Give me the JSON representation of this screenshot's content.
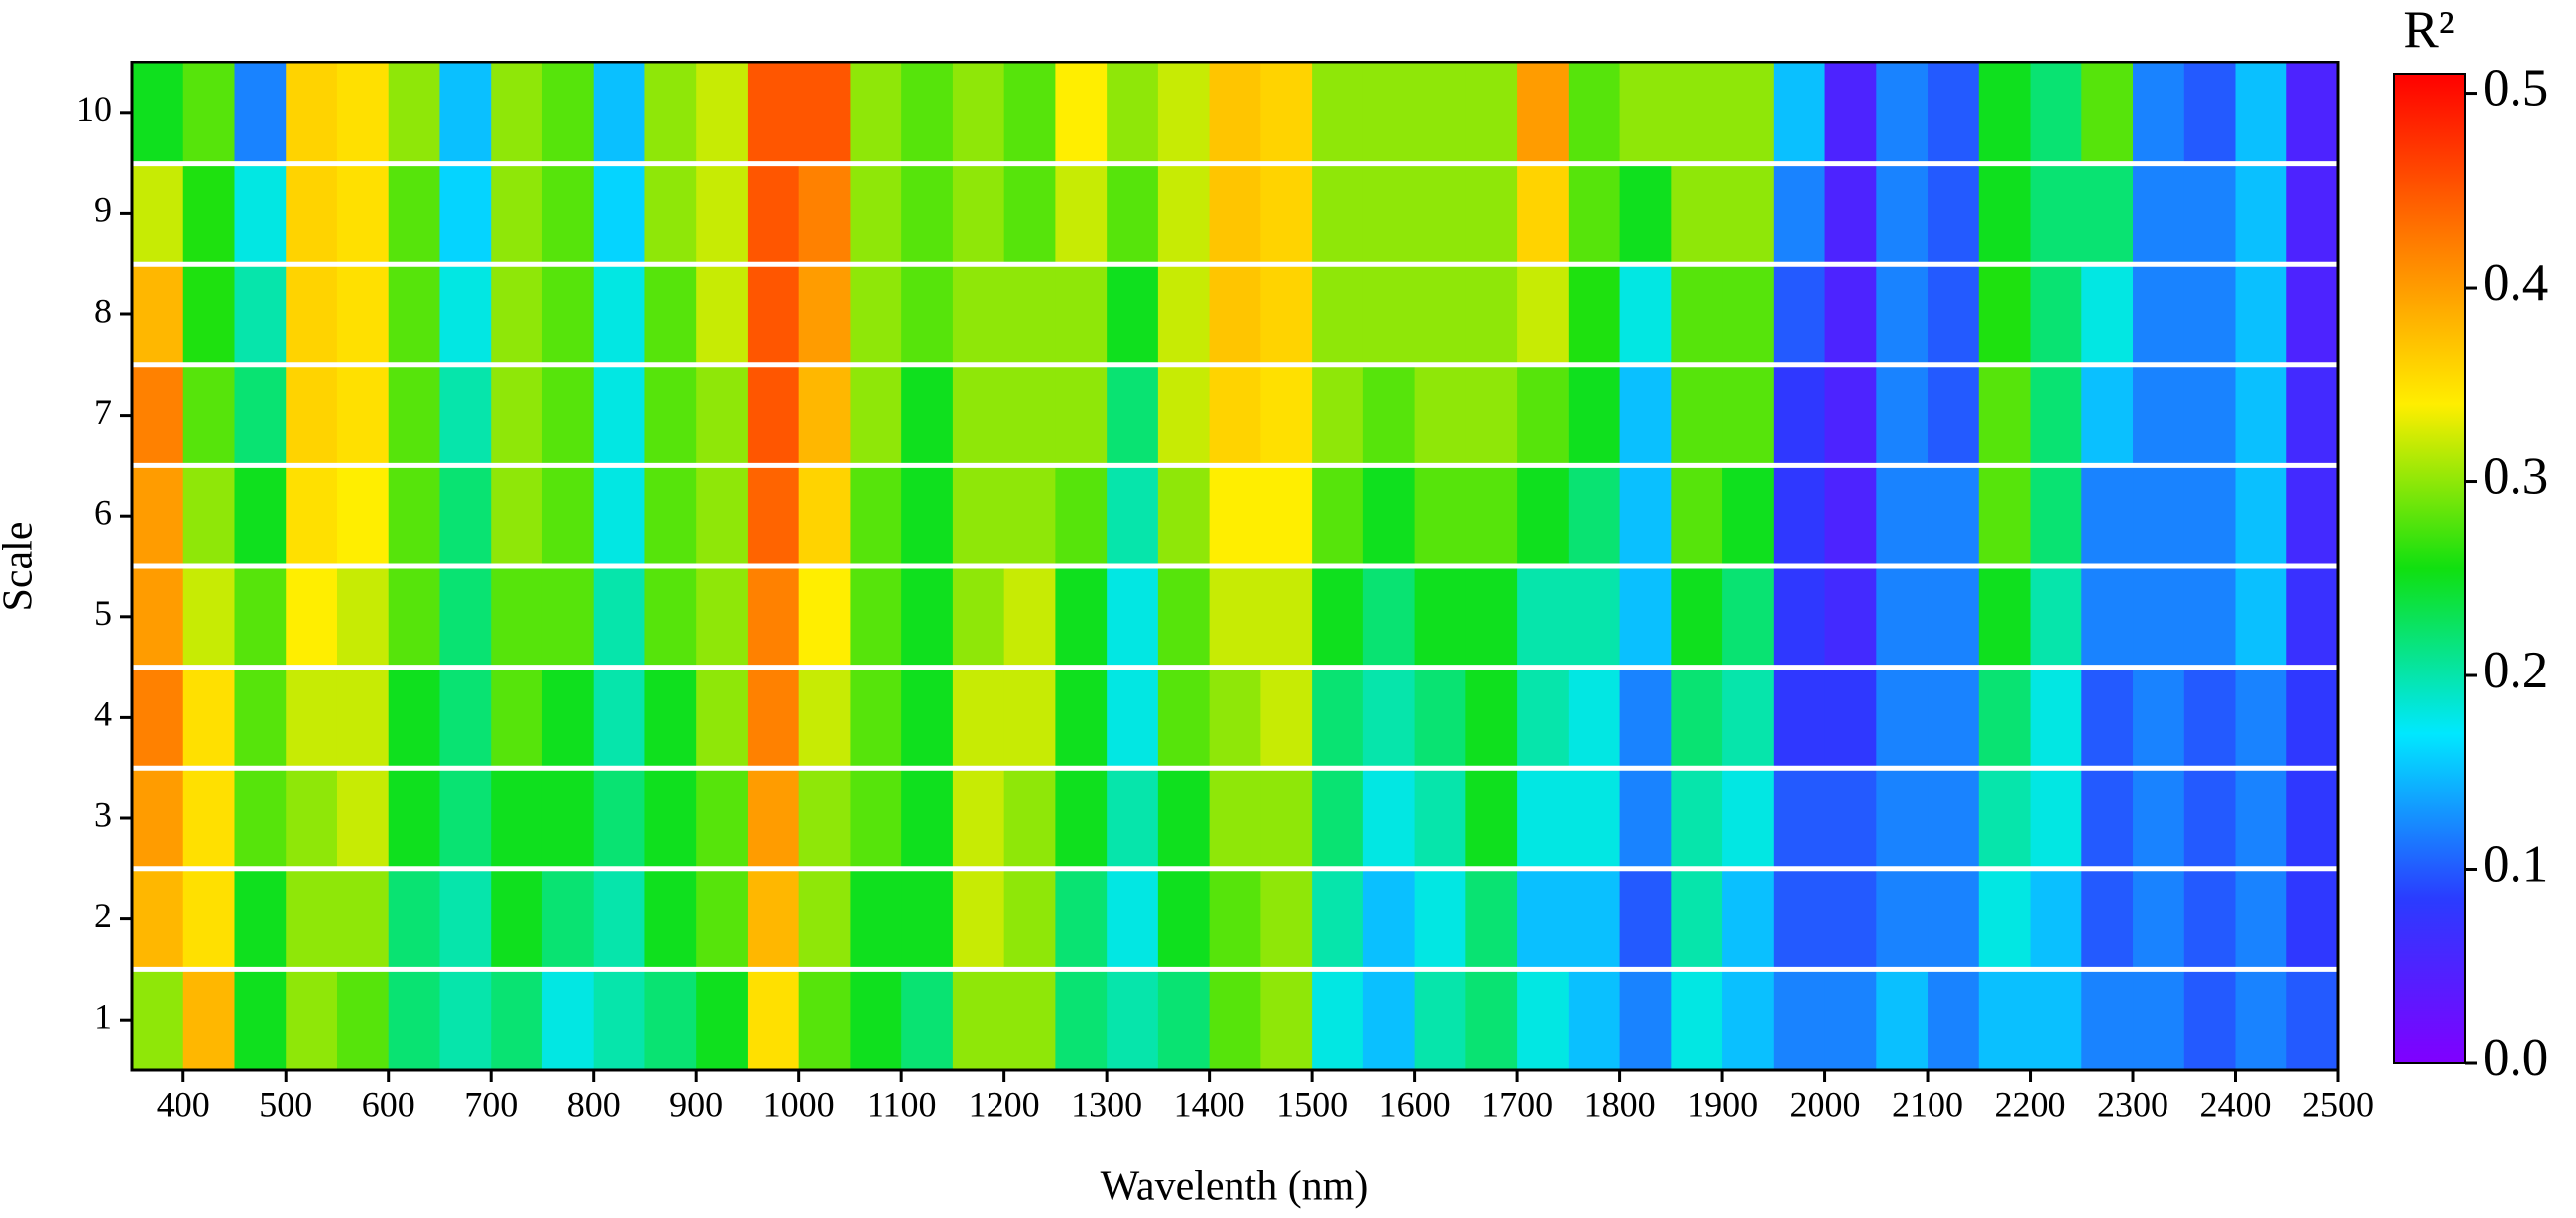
{
  "chart_data": {
    "type": "heatmap",
    "xlabel": "Wavelenth (nm)",
    "ylabel": "Scale",
    "colorbar_label": "R²",
    "x": [
      375,
      425,
      475,
      525,
      575,
      625,
      675,
      725,
      775,
      825,
      875,
      925,
      975,
      1025,
      1075,
      1125,
      1175,
      1225,
      1275,
      1325,
      1375,
      1425,
      1475,
      1525,
      1575,
      1625,
      1675,
      1725,
      1775,
      1825,
      1875,
      1925,
      1975,
      2025,
      2075,
      2125,
      2175,
      2225,
      2275,
      2325,
      2375,
      2425,
      2475
    ],
    "y": [
      1,
      2,
      3,
      4,
      5,
      6,
      7,
      8,
      9,
      10
    ],
    "z": [
      [
        0.3,
        0.38,
        0.25,
        0.3,
        0.28,
        0.22,
        0.2,
        0.22,
        0.18,
        0.2,
        0.22,
        0.25,
        0.35,
        0.28,
        0.25,
        0.22,
        0.3,
        0.3,
        0.22,
        0.2,
        0.22,
        0.28,
        0.3,
        0.18,
        0.15,
        0.2,
        0.22,
        0.18,
        0.15,
        0.12,
        0.18,
        0.15,
        0.12,
        0.12,
        0.15,
        0.12,
        0.15,
        0.15,
        0.12,
        0.12,
        0.1,
        0.12,
        0.1
      ],
      [
        0.38,
        0.35,
        0.25,
        0.3,
        0.3,
        0.22,
        0.2,
        0.25,
        0.22,
        0.2,
        0.25,
        0.28,
        0.38,
        0.3,
        0.25,
        0.25,
        0.32,
        0.3,
        0.22,
        0.18,
        0.25,
        0.28,
        0.3,
        0.2,
        0.15,
        0.18,
        0.22,
        0.15,
        0.15,
        0.1,
        0.2,
        0.15,
        0.1,
        0.1,
        0.12,
        0.12,
        0.18,
        0.15,
        0.1,
        0.12,
        0.1,
        0.12,
        0.08
      ],
      [
        0.4,
        0.35,
        0.28,
        0.3,
        0.32,
        0.25,
        0.22,
        0.25,
        0.25,
        0.22,
        0.25,
        0.28,
        0.4,
        0.3,
        0.28,
        0.25,
        0.32,
        0.3,
        0.25,
        0.2,
        0.25,
        0.3,
        0.3,
        0.22,
        0.18,
        0.2,
        0.25,
        0.18,
        0.18,
        0.12,
        0.2,
        0.18,
        0.1,
        0.1,
        0.12,
        0.12,
        0.2,
        0.18,
        0.1,
        0.12,
        0.1,
        0.12,
        0.08
      ],
      [
        0.42,
        0.35,
        0.28,
        0.32,
        0.32,
        0.25,
        0.22,
        0.28,
        0.25,
        0.2,
        0.25,
        0.3,
        0.42,
        0.32,
        0.28,
        0.25,
        0.32,
        0.32,
        0.25,
        0.18,
        0.28,
        0.3,
        0.32,
        0.22,
        0.2,
        0.22,
        0.25,
        0.2,
        0.18,
        0.12,
        0.22,
        0.2,
        0.08,
        0.08,
        0.12,
        0.12,
        0.22,
        0.18,
        0.1,
        0.12,
        0.1,
        0.12,
        0.08
      ],
      [
        0.4,
        0.32,
        0.28,
        0.34,
        0.32,
        0.28,
        0.22,
        0.28,
        0.28,
        0.2,
        0.28,
        0.3,
        0.42,
        0.34,
        0.28,
        0.25,
        0.3,
        0.32,
        0.25,
        0.18,
        0.28,
        0.32,
        0.32,
        0.25,
        0.22,
        0.25,
        0.25,
        0.2,
        0.2,
        0.15,
        0.25,
        0.22,
        0.08,
        0.06,
        0.12,
        0.12,
        0.25,
        0.2,
        0.12,
        0.12,
        0.12,
        0.15,
        0.07
      ],
      [
        0.4,
        0.3,
        0.25,
        0.35,
        0.34,
        0.28,
        0.22,
        0.3,
        0.28,
        0.18,
        0.28,
        0.3,
        0.44,
        0.36,
        0.28,
        0.25,
        0.3,
        0.3,
        0.28,
        0.2,
        0.3,
        0.34,
        0.34,
        0.28,
        0.25,
        0.28,
        0.28,
        0.25,
        0.22,
        0.15,
        0.28,
        0.25,
        0.08,
        0.05,
        0.12,
        0.12,
        0.28,
        0.22,
        0.12,
        0.12,
        0.12,
        0.15,
        0.06
      ],
      [
        0.42,
        0.28,
        0.22,
        0.36,
        0.35,
        0.28,
        0.2,
        0.3,
        0.28,
        0.18,
        0.28,
        0.3,
        0.45,
        0.38,
        0.3,
        0.25,
        0.3,
        0.3,
        0.3,
        0.22,
        0.32,
        0.36,
        0.35,
        0.3,
        0.28,
        0.3,
        0.3,
        0.28,
        0.25,
        0.15,
        0.28,
        0.28,
        0.08,
        0.05,
        0.12,
        0.1,
        0.28,
        0.22,
        0.15,
        0.12,
        0.12,
        0.15,
        0.06
      ],
      [
        0.38,
        0.26,
        0.2,
        0.36,
        0.35,
        0.28,
        0.18,
        0.3,
        0.28,
        0.18,
        0.28,
        0.32,
        0.45,
        0.4,
        0.3,
        0.28,
        0.3,
        0.3,
        0.3,
        0.25,
        0.32,
        0.37,
        0.36,
        0.3,
        0.3,
        0.3,
        0.3,
        0.32,
        0.26,
        0.18,
        0.28,
        0.28,
        0.1,
        0.05,
        0.12,
        0.1,
        0.26,
        0.22,
        0.18,
        0.12,
        0.12,
        0.15,
        0.05
      ],
      [
        0.32,
        0.26,
        0.18,
        0.36,
        0.35,
        0.28,
        0.16,
        0.3,
        0.28,
        0.16,
        0.3,
        0.32,
        0.45,
        0.42,
        0.3,
        0.28,
        0.3,
        0.28,
        0.32,
        0.28,
        0.32,
        0.37,
        0.36,
        0.3,
        0.3,
        0.3,
        0.3,
        0.36,
        0.28,
        0.25,
        0.3,
        0.3,
        0.12,
        0.05,
        0.12,
        0.1,
        0.25,
        0.22,
        0.22,
        0.12,
        0.12,
        0.15,
        0.05
      ],
      [
        0.25,
        0.28,
        0.12,
        0.36,
        0.35,
        0.3,
        0.15,
        0.3,
        0.28,
        0.15,
        0.3,
        0.32,
        0.45,
        0.45,
        0.3,
        0.28,
        0.3,
        0.28,
        0.34,
        0.3,
        0.32,
        0.37,
        0.36,
        0.3,
        0.3,
        0.3,
        0.3,
        0.4,
        0.28,
        0.3,
        0.3,
        0.3,
        0.15,
        0.05,
        0.12,
        0.1,
        0.25,
        0.22,
        0.28,
        0.12,
        0.1,
        0.15,
        0.05
      ]
    ],
    "xlim": [
      350,
      2500
    ],
    "xticks": [
      400,
      500,
      600,
      700,
      800,
      900,
      1000,
      1100,
      1200,
      1300,
      1400,
      1500,
      1600,
      1700,
      1800,
      1900,
      2000,
      2100,
      2200,
      2300,
      2400,
      2500
    ],
    "ylim": [
      0.5,
      10.5
    ],
    "yticks": [
      1,
      2,
      3,
      4,
      5,
      6,
      7,
      8,
      9,
      10
    ],
    "zlim": [
      0,
      0.51
    ],
    "zticks": [
      {
        "value": 0,
        "label": "0.0"
      },
      0.1,
      0.2,
      0.3,
      0.4,
      0.5
    ],
    "colormap": [
      "#8000ff",
      "#2a3cff",
      "#00e8ff",
      "#10e010",
      "#ffee00",
      "#ff7a00",
      "#ff0000"
    ]
  }
}
